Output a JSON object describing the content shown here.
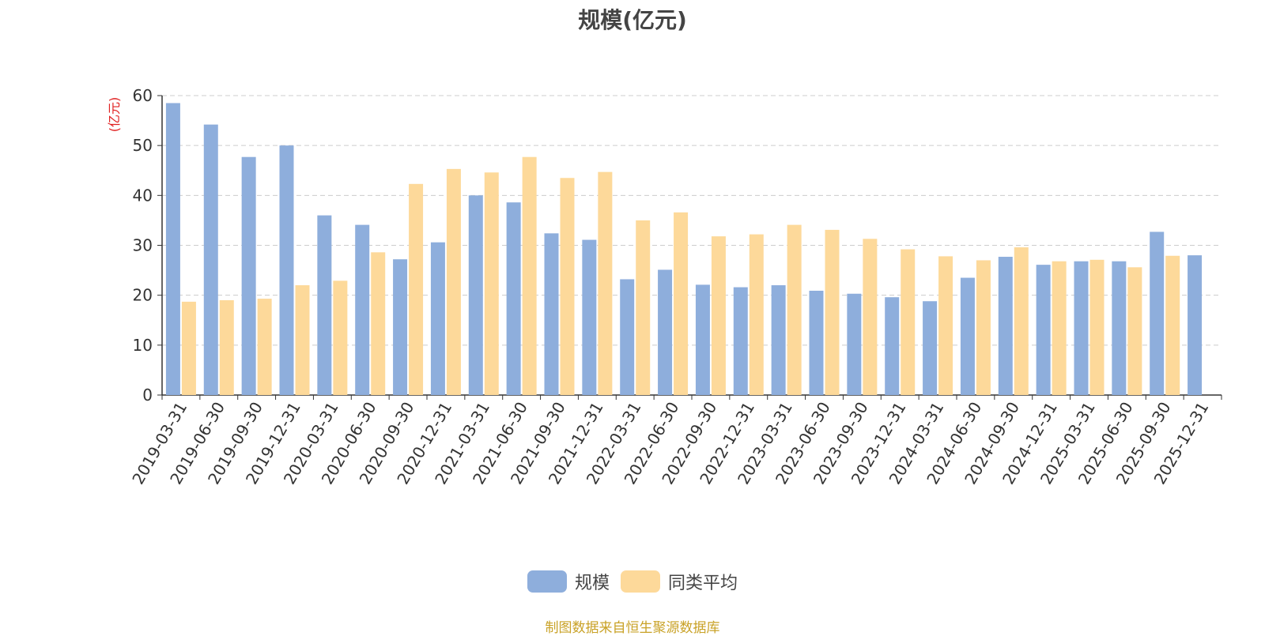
{
  "chart_data": {
    "type": "bar",
    "title": "规模(亿元)",
    "ylabel": "(亿元)",
    "ylim": [
      0,
      60
    ],
    "yticks": [
      "0",
      "10",
      "20",
      "30",
      "40",
      "50",
      "60"
    ],
    "grid": true,
    "legend_position": "bottom-center",
    "categories": [
      "2019-03-31",
      "2019-06-30",
      "2019-09-30",
      "2019-12-31",
      "2020-03-31",
      "2020-06-30",
      "2020-09-30",
      "2020-12-31",
      "2021-03-31",
      "2021-06-30",
      "2021-09-30",
      "2021-12-31",
      "2022-03-31",
      "2022-06-30",
      "2022-09-30",
      "2022-12-31",
      "2023-03-31",
      "2023-06-30",
      "2023-09-30",
      "2023-12-31",
      "2024-03-31",
      "2024-06-30",
      "2024-09-30",
      "2024-12-31",
      "2025-03-31",
      "2025-06-30",
      "2025-09-30",
      "2025-12-31"
    ],
    "series": [
      {
        "name": "规模",
        "color": "#8eaedc",
        "values": [
          58.5,
          54.2,
          47.7,
          50.0,
          36.0,
          34.1,
          27.2,
          30.6,
          40.0,
          38.6,
          32.4,
          31.1,
          23.2,
          25.1,
          22.1,
          21.6,
          22.0,
          20.9,
          20.3,
          19.6,
          18.8,
          23.5,
          27.7,
          26.1,
          26.8,
          26.8,
          32.7,
          28.0
        ]
      },
      {
        "name": "同类平均",
        "color": "#fdd99a",
        "values": [
          18.7,
          19.0,
          19.3,
          22.0,
          22.9,
          28.6,
          42.3,
          45.3,
          44.6,
          47.7,
          43.5,
          44.7,
          35.0,
          36.6,
          31.8,
          32.2,
          34.1,
          33.1,
          31.3,
          29.2,
          27.8,
          27.0,
          29.6,
          26.8,
          27.1,
          25.6,
          27.9,
          null
        ]
      }
    ]
  },
  "footer": {
    "source": "制图数据来自恒生聚源数据库",
    "source_color": "#c9a227"
  }
}
